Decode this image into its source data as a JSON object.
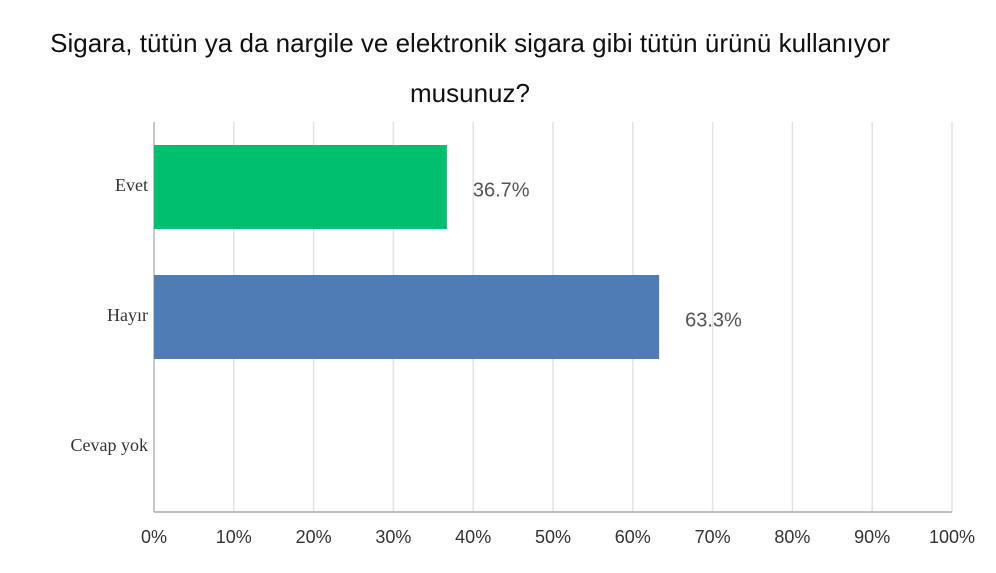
{
  "chart_data": {
    "type": "bar",
    "orientation": "horizontal",
    "title": "Sigara, tütün ya da nargile ve elektronik sigara gibi tütün ürünü kullanıyor musunuz?",
    "categories": [
      "Evet",
      "Hayır",
      "Cevap yok"
    ],
    "values": [
      36.7,
      63.3,
      0
    ],
    "value_labels": [
      "36.7%",
      "63.3%",
      null
    ],
    "colors": [
      "#00bf6f",
      "#4f7cb5",
      "#4f7cb5"
    ],
    "xlim": [
      0,
      100
    ],
    "xticks": [
      {
        "value": 0,
        "label": "0%"
      },
      {
        "value": 10,
        "label": "10%"
      },
      {
        "value": 20,
        "label": "20%"
      },
      {
        "value": 30,
        "label": "30%"
      },
      {
        "value": 40,
        "label": "40%"
      },
      {
        "value": 50,
        "label": "50%"
      },
      {
        "value": 60,
        "label": "60%"
      },
      {
        "value": 70,
        "label": "70%"
      },
      {
        "value": 80,
        "label": "80%"
      },
      {
        "value": 90,
        "label": "90%"
      },
      {
        "value": 100,
        "label": "100%"
      }
    ],
    "grid": true
  }
}
